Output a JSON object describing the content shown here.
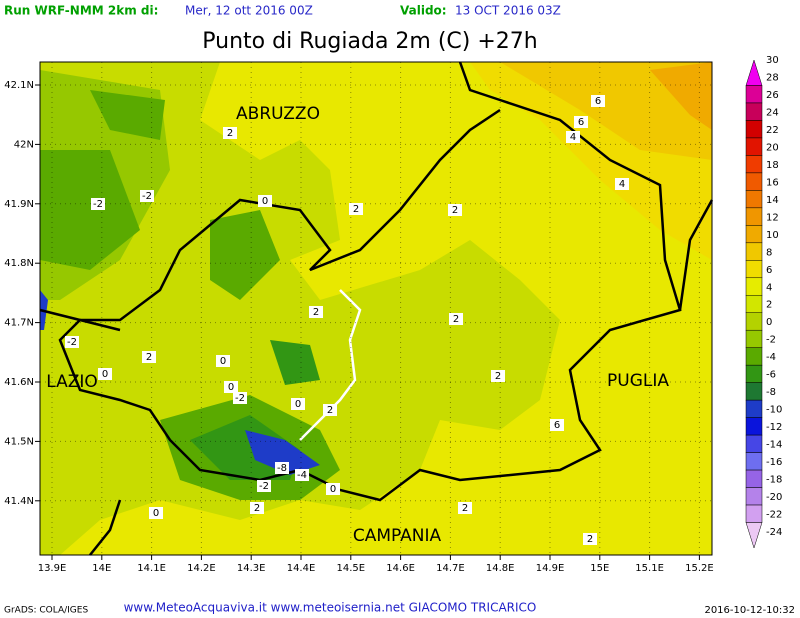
{
  "header": {
    "run": "Run WRF-NMM 2km di:",
    "init": "Mer, 12 ott 2016 00Z",
    "valid_label": "Valido:",
    "valid": "13 OCT 2016 03Z"
  },
  "title": "Punto di Rugiada 2m (C) +27h",
  "lon_ticks": [
    "13.9E",
    "14E",
    "14.1E",
    "14.2E",
    "14.3E",
    "14.4E",
    "14.5E",
    "14.6E",
    "14.7E",
    "14.8E",
    "14.9E",
    "15E",
    "15.1E",
    "15.2E"
  ],
  "lat_ticks": [
    "42.1N",
    "42N",
    "41.9N",
    "41.8N",
    "41.7N",
    "41.6N",
    "41.5N",
    "41.4N"
  ],
  "regions": [
    "ABRUZZO",
    "LAZIO",
    "PUGLIA",
    "CAMPANIA"
  ],
  "contour_labels": [
    "2",
    "-2",
    "-2",
    "2",
    "0",
    "2",
    "6",
    "6",
    "4",
    "4",
    "2",
    "2",
    "-2",
    "0",
    "2",
    "0",
    "0",
    "-2",
    "0",
    "2",
    "2",
    "6",
    "-8",
    "-4",
    "-2",
    "0",
    "2",
    "0",
    "2",
    "2"
  ],
  "colorbar": {
    "labels": [
      30,
      28,
      26,
      24,
      22,
      20,
      18,
      16,
      14,
      12,
      10,
      8,
      6,
      4,
      2,
      0,
      -2,
      -4,
      -6,
      -8,
      -10,
      -12,
      -14,
      -16,
      -18,
      -20,
      -22,
      -24
    ],
    "colors": [
      "#f000f0",
      "#dc0096",
      "#c8005a",
      "#d20000",
      "#e11400",
      "#f03c00",
      "#f05a00",
      "#f07800",
      "#f09600",
      "#f0aa00",
      "#f0c800",
      "#f0dc00",
      "#e6ec00",
      "#d2e600",
      "#b4d200",
      "#96c800",
      "#5aaa00",
      "#329614",
      "#1e7832",
      "#1e3cc8",
      "#0a14dc",
      "#4646e6",
      "#6e6ef0",
      "#9664e6",
      "#b482ea",
      "#d2a0f0",
      "#ecc8f4"
    ]
  },
  "footer": {
    "left": "GrADS: COLA/IGES",
    "center": "www.MeteoAcquaviva.it www.meteoisernia.net GIACOMO TRICARICO",
    "right": "2016-10-12-10:32"
  }
}
